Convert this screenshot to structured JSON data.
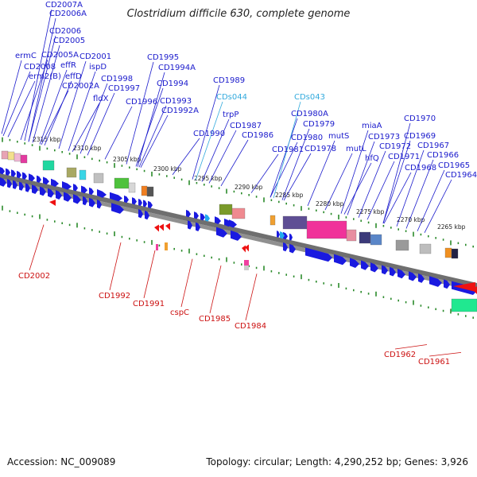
{
  "title": "Clostridium difficile 630, complete genome",
  "accession_label": "Accession: NC_009089",
  "summary_label": "Topology: circular; Length: 4,290,252 bp; Genes: 3,926",
  "colors": {
    "label_plus": "#1a1acc",
    "label_ncrna": "#33aadd",
    "label_minus": "#cc1111",
    "backbone": "#909090",
    "tick": "#2a8a2a",
    "arrow_plus": "#1a1ae0",
    "arrow_minus": "#ee1111"
  },
  "scale_labels": [
    "2315 kbp",
    "2310 kbp",
    "2305 kbp",
    "2300 kbp",
    "2295 kbp",
    "2290 kbp",
    "2285 kbp",
    "2280 kbp",
    "2275 kbp",
    "2270 kbp",
    "2265 kbp"
  ],
  "plus_strand_labels": [
    "CD2007A",
    "CD2006A",
    "CD2006",
    "CD2005",
    "ermC",
    "CD2005A",
    "CD2001",
    "CD2008",
    "erm2(B)",
    "effR",
    "ispD",
    "effD",
    "CD2002A",
    "fldX",
    "CD1998",
    "CD1997",
    "CD1996",
    "CD1995",
    "CD1994A",
    "CD1994",
    "CD1993",
    "CD1992A",
    "CD1989",
    "trpP",
    "CD1990",
    "CD1987",
    "CD1986",
    "CD1980A",
    "CD1979",
    "CD1980",
    "CD1981",
    "CD1978",
    "mutS",
    "mutL",
    "miaA",
    "CD1973",
    "hfQ",
    "CD1972",
    "CD1971",
    "CD1970",
    "CD1969",
    "CD1967",
    "CD1968",
    "CD1966",
    "CD1965",
    "CD1964"
  ],
  "ncrna_labels": [
    "CDs044",
    "CDs043"
  ],
  "minus_strand_labels": [
    "CD2002",
    "CD1992",
    "CD1991",
    "cspC",
    "CD1985",
    "CD1984",
    "CD1962",
    "CD1961"
  ]
}
